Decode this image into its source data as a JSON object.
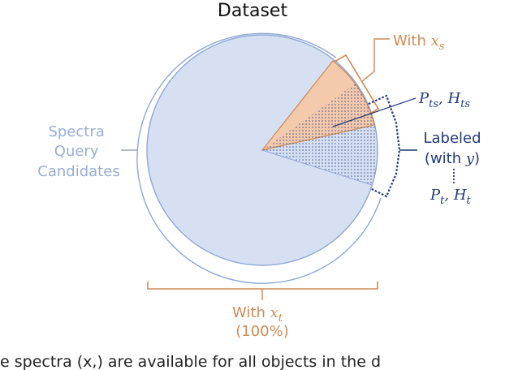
{
  "title": "Dataset",
  "colors": {
    "pie_fill": "#d6e0f2",
    "pie_stroke": "#8ea8d4",
    "orange": "#d08a55",
    "orange_fill": "#f4c9ac",
    "navy": "#1f3a7a",
    "gray_text": "#98aed6",
    "caption": "#222222"
  },
  "labels": {
    "spectra": [
      "Spectra",
      "Query",
      "Candidates"
    ],
    "with_xs": {
      "prefix": "With ",
      "var": "x",
      "sub": "s"
    },
    "pts_hts": {
      "p": "P",
      "p_sub": "ts",
      "sep": ", ",
      "h": "H",
      "h_sub": "ts"
    },
    "labeled": {
      "line1": "Labeled",
      "line2_prefix": "(with ",
      "var": "y",
      "line2_suffix": ")"
    },
    "pt_ht": {
      "p": "P",
      "p_sub": "t",
      "sep": ", ",
      "h": "H",
      "h_sub": "t"
    },
    "with_xt": {
      "prefix": "With ",
      "var": "x",
      "sub": "t",
      "line2": "(100%)"
    }
  },
  "caption_fragment": "e spectra (x,) are available for all objects in the d"
}
